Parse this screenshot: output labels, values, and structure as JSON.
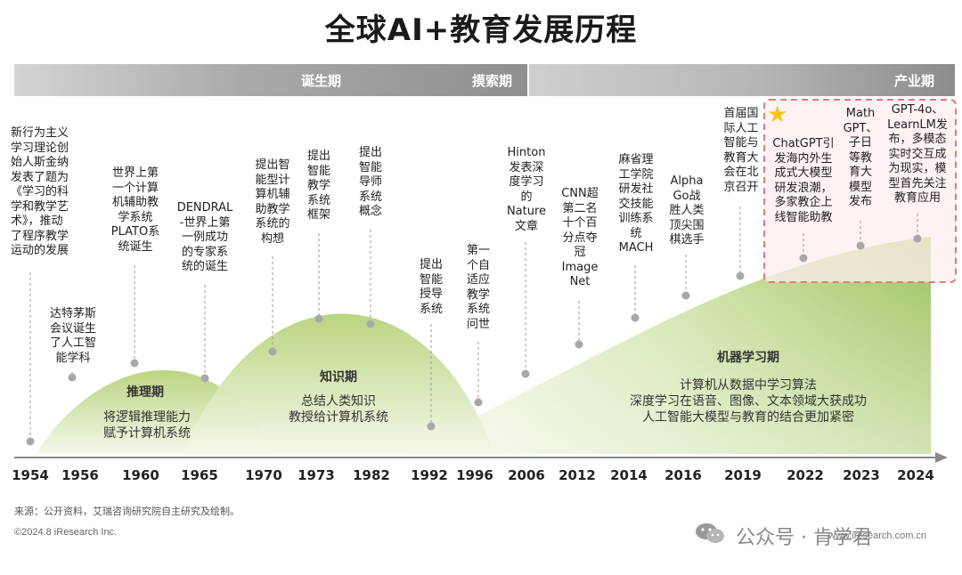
{
  "title": "全球AI+教育发展历程",
  "phases": [
    {
      "label": "诞生期"
    },
    {
      "label": "摸索期"
    },
    {
      "label": "产业期"
    }
  ],
  "years": [
    "1954",
    "1956",
    "1960",
    "1965",
    "1970",
    "1973",
    "1982",
    "1992",
    "1996",
    "2006",
    "2012",
    "2014",
    "2016",
    "2019",
    "2022",
    "2023",
    "2024"
  ],
  "events": [
    {
      "year": "1954",
      "text": "新行为主义\n学习理论创\n始人斯金纳\n发表了题为\n《学习的科\n学和教学艺\n术》，推动\n了程序教学\n运动的发展"
    },
    {
      "year": "1956",
      "text": "达特茅斯\n会议诞生\n了人工智\n能学科"
    },
    {
      "year": "1960",
      "text": "世界上第\n一个计算\n机辅助教\n学系统\nPLATO系\n统诞生"
    },
    {
      "year": "1965",
      "text": "DENDRAL\n-世界上第\n一例成功\n的专家系\n统的诞生"
    },
    {
      "year": "1970",
      "text": "提出智\n能型计\n算机辅\n助教学\n系统的\n构想"
    },
    {
      "year": "1973",
      "text": "提出\n智能\n教学\n系统\n框架"
    },
    {
      "year": "1982",
      "text": "提出\n智能\n导师\n系统\n概念"
    },
    {
      "year": "1992",
      "text": "提出\n智能\n授导\n系统"
    },
    {
      "year": "1996",
      "text": "第一\n个自\n适应\n教学\n系统\n问世"
    },
    {
      "year": "2006",
      "text": "Hinton\n发表深\n度学习\n的\nNature\n文章"
    },
    {
      "year": "2012",
      "text": "CNN超\n第二名\n十个百\n分点夺\n冠\nImage\nNet"
    },
    {
      "year": "2014",
      "text": "麻省理\n工学院\n研发社\n交技能\n训练系\n统\nMACH"
    },
    {
      "year": "2016",
      "text": "Alpha\nGo战\n胜人类\n顶尖围\n棋选手"
    },
    {
      "year": "2019",
      "text": "首届国\n际人工\n智能与\n教育大\n会在北\n京召开"
    },
    {
      "year": "2022",
      "text": "ChatGPT引\n发海内外生\n成式大模型\n研发浪潮，\n多家教企上\n线智能助教"
    },
    {
      "year": "2023",
      "text": "Math\nGPT、\n子日\n等教\n育大\n模型\n发布"
    },
    {
      "year": "2024",
      "text": "GPT-4o、\nLearnLM发\n布，多模态\n实时交互成\n为现实，模\n型首先关注\n教育应用"
    }
  ],
  "periods": [
    {
      "name": "推理期",
      "desc": "将逻辑推理能力\n赋予计算机系统"
    },
    {
      "name": "知识期",
      "desc": "总结人类知识\n教授给计算机系统"
    },
    {
      "name": "机器学习期",
      "desc": "计算机从数据中学习算法\n深度学习在语音、图像、文本领域大获成功\n人工智能大模型与教育的结合更加紧密"
    }
  ],
  "source": "来源：公开资料，艾瑞咨询研究院自主研究及绘制。",
  "copyright": "©2024.8 iResearch Inc.",
  "watermark": {
    "name": "公众号 · 肯学君",
    "url": "www.iresearch.com.cn"
  },
  "colors": {
    "band_dark": "#8c8c8c",
    "band_light": "#cfcfcf",
    "green_light": "#e8f1d2",
    "green_dark": "#9cc25a",
    "highlight_border": "#e07a7a",
    "highlight_fill": "#fdeeee"
  }
}
